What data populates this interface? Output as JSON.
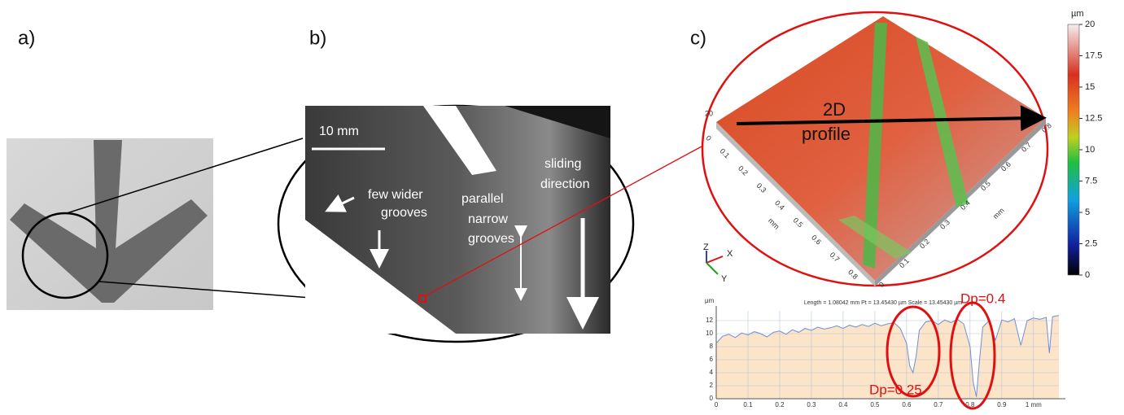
{
  "panels": {
    "a": {
      "label": "a)"
    },
    "b": {
      "label": "b)",
      "scale_bar": "10 mm",
      "few_wider_grooves": [
        "few wider",
        "grooves"
      ],
      "parallel_narrow_grooves": [
        "parallel",
        "narrow",
        "grooves"
      ],
      "sliding_direction": [
        "sliding",
        "direction"
      ]
    },
    "c": {
      "label": "c)",
      "profile_arrow": [
        "2D",
        "profile"
      ],
      "height_label": "20",
      "left_axis": {
        "ticks": [
          "0",
          "0.1",
          "0.2",
          "0.3",
          "0.4",
          "0.5",
          "0.6",
          "0.7",
          "0.8"
        ],
        "unit": "mm"
      },
      "right_axis": {
        "ticks": [
          "0",
          "0.1",
          "0.2",
          "0.3",
          "0.4",
          "0.5",
          "0.6",
          "0.7",
          "0.8"
        ],
        "unit": "mm"
      },
      "gizmo": [
        "Z",
        "X",
        "Y"
      ],
      "colorbar": {
        "unit": "µm",
        "lim": [
          0,
          20
        ],
        "ticks": [
          0,
          2.5,
          5,
          7.5,
          10,
          12.5,
          15,
          17.5,
          20
        ]
      }
    }
  },
  "profile": {
    "header": "Length = 1.08042 mm  Pt = 13.45430 µm  Scale = 13.45430 µm",
    "y_unit": "µm",
    "xlim": [
      0,
      1.08
    ],
    "ylim": [
      0,
      13.5
    ],
    "xticks": [
      0,
      0.1,
      0.2,
      0.3,
      0.4,
      0.5,
      0.6,
      0.7,
      0.8,
      0.9,
      {
        "value": 1,
        "label": "1 mm"
      }
    ],
    "yticks": [
      0,
      2,
      4,
      6,
      8,
      10,
      12
    ],
    "x": [
      0,
      0.02,
      0.04,
      0.06,
      0.08,
      0.1,
      0.12,
      0.14,
      0.16,
      0.18,
      0.2,
      0.22,
      0.24,
      0.26,
      0.28,
      0.3,
      0.32,
      0.34,
      0.36,
      0.38,
      0.4,
      0.42,
      0.44,
      0.46,
      0.48,
      0.5,
      0.52,
      0.54,
      0.56,
      0.58,
      0.6,
      0.61,
      0.62,
      0.63,
      0.64,
      0.66,
      0.68,
      0.7,
      0.72,
      0.74,
      0.76,
      0.78,
      0.8,
      0.81,
      0.82,
      0.83,
      0.84,
      0.86,
      0.88,
      0.9,
      0.92,
      0.94,
      0.96,
      0.98,
      1.0,
      1.02,
      1.04,
      1.05,
      1.06,
      1.08
    ],
    "values": [
      8.5,
      9.6,
      9.9,
      9.4,
      10.1,
      9.8,
      10.3,
      10.0,
      9.5,
      10.2,
      10.4,
      9.9,
      10.6,
      10.2,
      10.8,
      10.5,
      11.0,
      10.7,
      10.9,
      11.2,
      10.8,
      11.3,
      11.0,
      11.4,
      11.1,
      11.6,
      11.2,
      11.5,
      11.7,
      10.8,
      8.5,
      5.0,
      4.0,
      6.5,
      10.5,
      11.8,
      12.0,
      11.4,
      12.1,
      11.7,
      12.2,
      11.5,
      8.0,
      2.5,
      0.3,
      6.0,
      11.0,
      12.0,
      9.0,
      12.1,
      11.8,
      12.3,
      8.2,
      12.0,
      12.4,
      12.2,
      12.5,
      7.0,
      12.6,
      12.8
    ],
    "fill": "#fbe4c8",
    "line_color": "#6f8fd6",
    "grid": true,
    "annotations": {
      "upper": "Dp=0.4",
      "lower": "Dp=0.25"
    }
  }
}
